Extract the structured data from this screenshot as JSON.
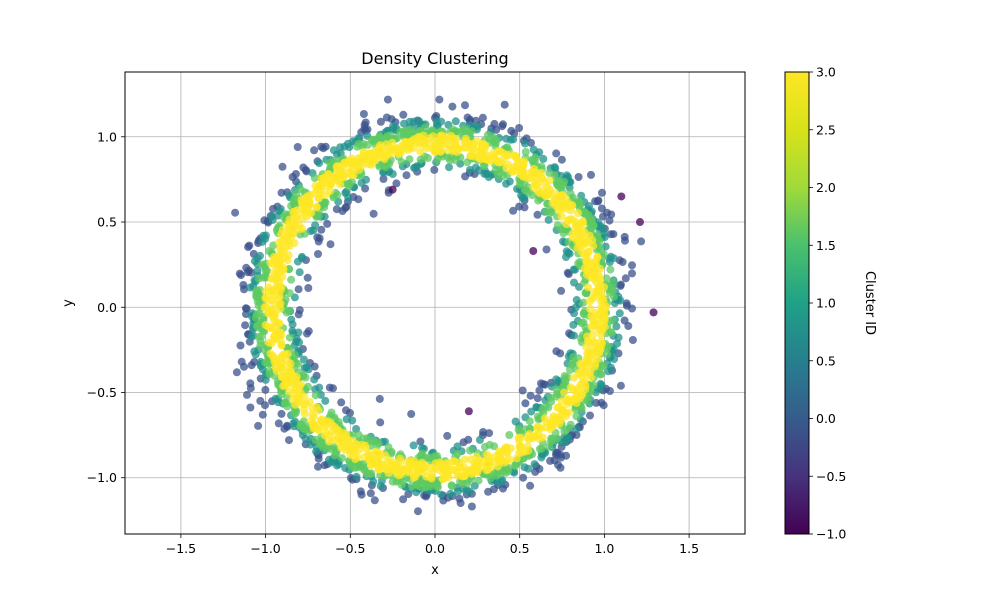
{
  "chart_data": {
    "type": "scatter",
    "title": "Density Clustering",
    "xlabel": "x",
    "ylabel": "y",
    "xlim": [
      -1.83,
      1.83
    ],
    "ylim": [
      -1.33,
      1.38
    ],
    "x_ticks": [
      "−1.5",
      "−1.0",
      "−0.5",
      "0.0",
      "0.5",
      "1.0",
      "1.5"
    ],
    "x_tick_values": [
      -1.5,
      -1.0,
      -0.5,
      0.0,
      0.5,
      1.0,
      1.5
    ],
    "y_ticks": [
      "−1.0",
      "−0.5",
      "0.0",
      "0.5",
      "1.0"
    ],
    "y_tick_values": [
      -1.0,
      -0.5,
      0.0,
      0.5,
      1.0
    ],
    "grid": true,
    "colormap": "viridis",
    "point_alpha": 0.75,
    "colorbar": {
      "label": "Cluster ID",
      "range": [
        -1.0,
        3.0
      ],
      "ticks": [
        "−1.0",
        "−0.5",
        "0.0",
        "0.5",
        "1.0",
        "1.5",
        "2.0",
        "2.5",
        "3.0"
      ],
      "tick_values": [
        -1.0,
        -0.5,
        0.0,
        0.5,
        1.0,
        1.5,
        2.0,
        2.5,
        3.0
      ]
    },
    "clusters": [
      {
        "id": -1,
        "color": "#440154",
        "description": "noise points"
      },
      {
        "id": 0,
        "color": "#3b528b",
        "description": "outermost/innermost ring edges"
      },
      {
        "id": 1,
        "color": "#21918c"
      },
      {
        "id": 2,
        "color": "#5ec962"
      },
      {
        "id": 3,
        "color": "#fde725",
        "description": "ring core"
      }
    ],
    "noise_points": [
      {
        "x": -0.25,
        "y": 0.69
      },
      {
        "x": 0.58,
        "y": 0.33
      },
      {
        "x": 1.1,
        "y": 0.65
      },
      {
        "x": 1.21,
        "y": 0.5
      },
      {
        "x": 1.29,
        "y": -0.03
      },
      {
        "x": 0.2,
        "y": -0.61
      }
    ],
    "ring": {
      "center": [
        0.0,
        0.0
      ],
      "radius": 1.0,
      "description": "annulus of points, radius ~0.7–1.25, cluster value by distance from ring core"
    }
  }
}
